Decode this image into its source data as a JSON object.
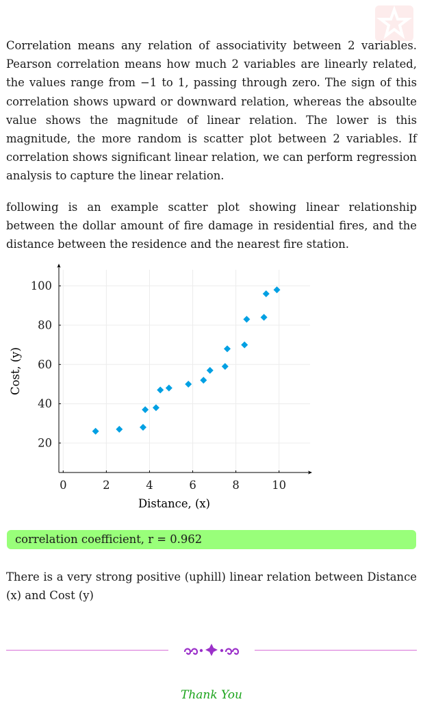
{
  "paragraphs": {
    "p1": "Correlation means any relation of associativity between 2 variables. Pearson correlation means how much 2 variables are linearly related, the values range from −1 to 1, passing through zero. The sign of this correlation shows upward or downward relation, whereas the absoulte value shows the magnitude of linear relation. The lower is this magnitude, the more random is scatter plot between 2 variables. If correlation shows significant linear relation, we can perform regression analysis to capture the linear relation.",
    "p2": "following is an example scatter plot showing linear relationship between the dollar amount of fire damage in residential fires, and the distance between the residence and the nearest fire station.",
    "p3": "There is a very strong positive (uphill) linear relation between Distance (x) and Cost (y)"
  },
  "correlation": {
    "label": "correlation coefficient, r = 0.962"
  },
  "closing": "Thank You",
  "colors": {
    "marker": "#00a0e3",
    "highlight": "#99ff7a",
    "divider": "#d86fd8",
    "thanks": "#1aa31a"
  },
  "chart_data": {
    "type": "scatter",
    "title": "",
    "xlabel": "Distance, (x)",
    "ylabel": "Cost, (y)",
    "xlim": [
      -0.2,
      11.5
    ],
    "ylim": [
      5,
      111
    ],
    "xticks": [
      0,
      2,
      4,
      6,
      8,
      10
    ],
    "yticks": [
      20,
      40,
      60,
      80,
      100
    ],
    "grid": true,
    "marker": "diamond",
    "series": [
      {
        "points": [
          [
            1.5,
            26
          ],
          [
            2.6,
            27
          ],
          [
            3.7,
            28
          ],
          [
            3.8,
            37
          ],
          [
            4.3,
            38
          ],
          [
            4.5,
            47
          ],
          [
            4.9,
            48
          ],
          [
            5.8,
            50
          ],
          [
            6.5,
            52
          ],
          [
            6.8,
            57
          ],
          [
            7.5,
            59
          ],
          [
            7.6,
            68
          ],
          [
            8.4,
            70
          ],
          [
            8.5,
            83
          ],
          [
            9.3,
            84
          ],
          [
            9.4,
            96
          ],
          [
            9.9,
            98
          ]
        ]
      }
    ]
  }
}
